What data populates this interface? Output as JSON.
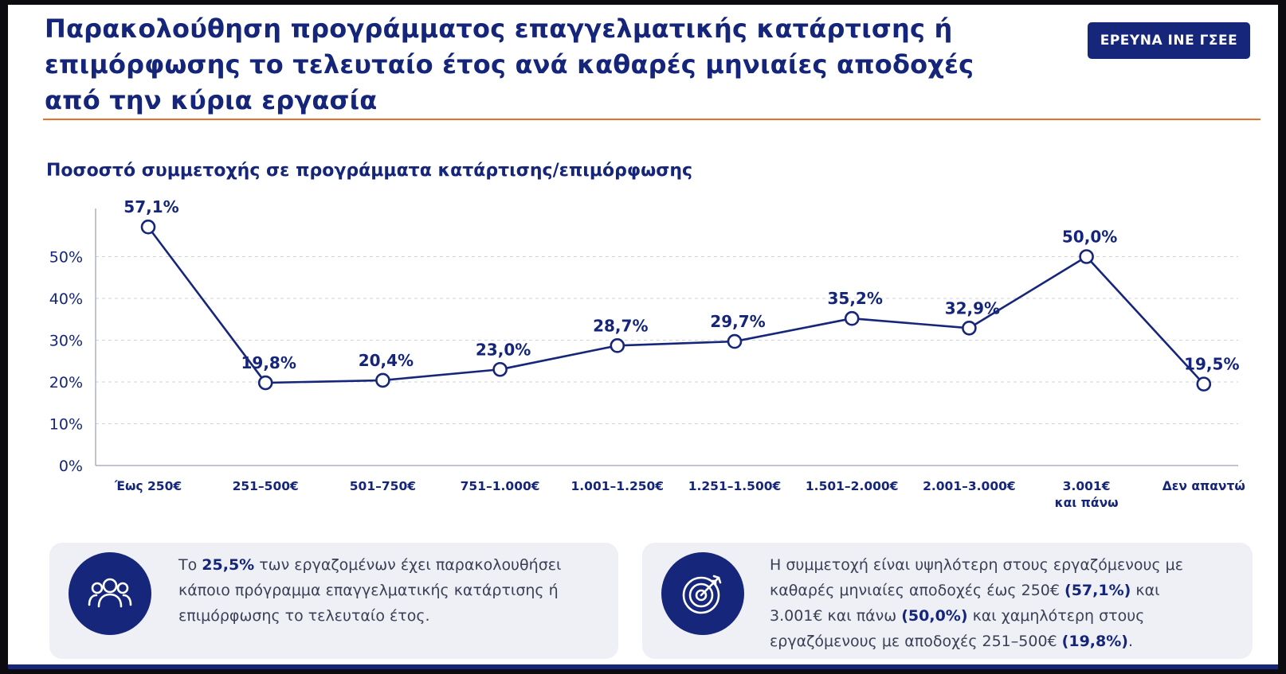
{
  "header": {
    "title_lines": [
      "Παρακολούθηση προγράμματος επαγγελματικής κατάρτισης ή",
      "επιμόρφωσης το τελευταίο έτος ανά καθαρές μηνιαίες αποδοχές",
      "από την κύρια εργασία"
    ],
    "badge": "ΕΡΕΥΝΑ ΙΝΕ ΓΣΕΕ"
  },
  "chart_data": {
    "type": "line",
    "title": "Ποσοστό συμμετοχής σε προγράμματα κατάρτισης/επιμόρφωσης",
    "categories": [
      [
        "Έως 250€"
      ],
      [
        "251–500€"
      ],
      [
        "501–750€"
      ],
      [
        "751–1.000€"
      ],
      [
        "1.001–1.250€"
      ],
      [
        "1.251–1.500€"
      ],
      [
        "1.501–2.000€"
      ],
      [
        "2.001–3.000€"
      ],
      [
        "3.001€",
        "και πάνω"
      ],
      [
        "Δεν απαντώ"
      ]
    ],
    "values": [
      57.1,
      19.8,
      20.4,
      23.0,
      28.7,
      29.7,
      35.2,
      32.9,
      50.0,
      19.5
    ],
    "value_labels": [
      "57,1%",
      "19,8%",
      "20,4%",
      "23,0%",
      "28,7%",
      "29,7%",
      "35,2%",
      "32,9%",
      "50,0%",
      "19,5%"
    ],
    "yticks": [
      0,
      10,
      20,
      30,
      40,
      50
    ],
    "ytick_labels": [
      "0%",
      "10%",
      "20%",
      "30%",
      "40%",
      "50%"
    ],
    "ylim": [
      0,
      60
    ],
    "grid": "horizontal dashed",
    "line_color": "#16267a"
  },
  "cards": [
    {
      "icon": "people-group-icon",
      "parts": [
        {
          "t": "Το ",
          "b": false
        },
        {
          "t": "25,5%",
          "b": true
        },
        {
          "t": " των εργαζομένων έχει παρακολουθήσει κάποιο πρόγραμμα επαγγελματικής κατάρτισης ή επιμόρφωσης το τελευταίο έτος.",
          "b": false
        }
      ]
    },
    {
      "icon": "target-icon",
      "parts": [
        {
          "t": "Η συμμετοχή είναι υψηλότερη στους εργαζόμενους με καθαρές μηνιαίες αποδοχές έως 250€ ",
          "b": false
        },
        {
          "t": "(57,1%)",
          "b": true
        },
        {
          "t": " και 3.001€ και πάνω ",
          "b": false
        },
        {
          "t": "(50,0%)",
          "b": true
        },
        {
          "t": " και χαμηλότερη στους εργαζόμενους με αποδοχές 251–500€ ",
          "b": false
        },
        {
          "t": "(19,8%)",
          "b": true
        },
        {
          "t": ".",
          "b": false
        }
      ]
    }
  ]
}
